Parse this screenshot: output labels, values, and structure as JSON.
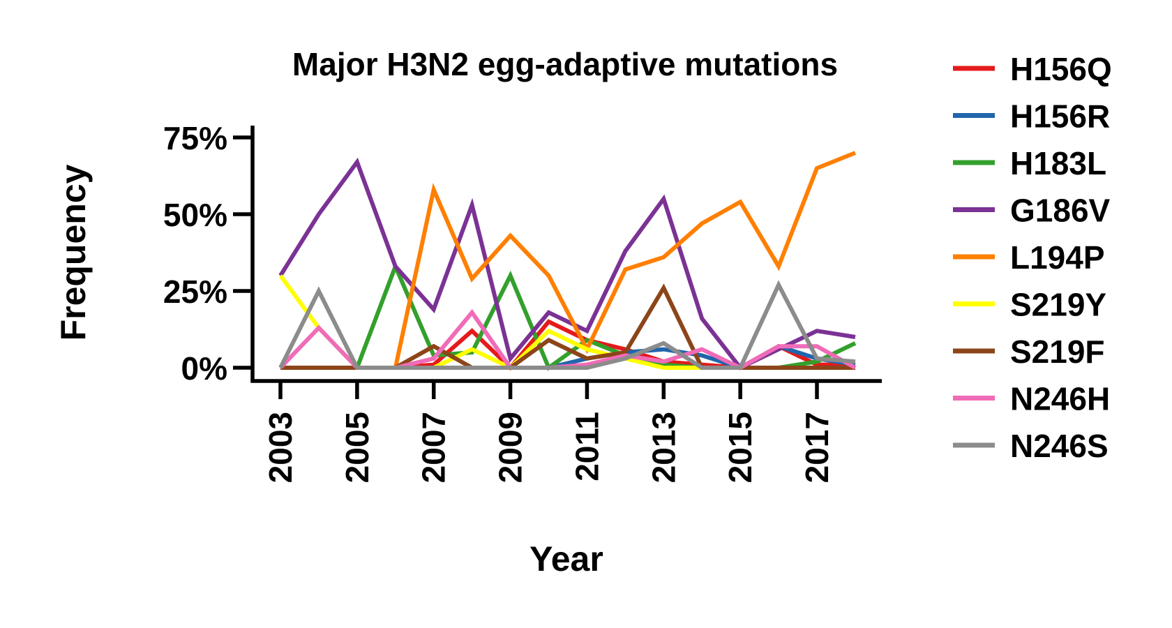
{
  "chart_data": {
    "type": "line",
    "title": "Major H3N2 egg-adaptive mutations",
    "xlabel": "Year",
    "ylabel": "Frequency",
    "ylim": [
      0,
      75
    ],
    "xlim": [
      2003,
      2018
    ],
    "x": [
      2003,
      2004,
      2005,
      2006,
      2007,
      2008,
      2009,
      2010,
      2011,
      2012,
      2013,
      2014,
      2015,
      2016,
      2017,
      2018
    ],
    "x_ticks": [
      2003,
      2005,
      2007,
      2009,
      2011,
      2013,
      2015,
      2017
    ],
    "x_tick_labels": [
      "2003",
      "2005",
      "2007",
      "2009",
      "2011",
      "2013",
      "2015",
      "2017"
    ],
    "y_ticks": [
      0,
      25,
      50,
      75
    ],
    "y_tick_labels": [
      "0%",
      "25%",
      "50%",
      "75%"
    ],
    "grid": false,
    "legend_position": "right",
    "series": [
      {
        "name": "H156Q",
        "color": "#e41a1c",
        "values": [
          0,
          0,
          0,
          0,
          1,
          12,
          0,
          15,
          9,
          6,
          2,
          1,
          0,
          7,
          1,
          1
        ]
      },
      {
        "name": "H156R",
        "color": "#2166ac",
        "values": [
          0,
          0,
          0,
          0,
          0,
          0,
          0,
          0,
          3,
          5,
          6,
          4,
          0,
          7,
          3,
          1
        ]
      },
      {
        "name": "H183L",
        "color": "#33a02c",
        "values": [
          0,
          0,
          0,
          33,
          4,
          5,
          30,
          0,
          9,
          4,
          1,
          0,
          0,
          0,
          2,
          8
        ]
      },
      {
        "name": "G186V",
        "color": "#7b3294",
        "values": [
          30,
          50,
          67,
          33,
          19,
          53,
          3,
          18,
          12,
          38,
          55,
          16,
          0,
          6,
          12,
          10
        ]
      },
      {
        "name": "L194P",
        "color": "#ff7f00",
        "values": [
          0,
          0,
          0,
          0,
          58,
          29,
          43,
          30,
          6,
          32,
          36,
          47,
          54,
          33,
          65,
          70
        ]
      },
      {
        "name": "S219Y",
        "color": "#ffff00",
        "values": [
          30,
          13,
          0,
          0,
          0,
          6,
          0,
          12,
          6,
          3,
          0,
          0,
          0,
          0,
          0,
          0
        ]
      },
      {
        "name": "S219F",
        "color": "#8c4519",
        "values": [
          0,
          0,
          0,
          0,
          7,
          0,
          0,
          9,
          3,
          5,
          26,
          0,
          0,
          0,
          0,
          0
        ]
      },
      {
        "name": "N246H",
        "color": "#f06bb8",
        "values": [
          0,
          13,
          0,
          0,
          3,
          18,
          0,
          0,
          1,
          4,
          2,
          6,
          0,
          7,
          7,
          0
        ]
      },
      {
        "name": "N246S",
        "color": "#8c8c8c",
        "values": [
          0,
          25,
          0,
          0,
          0,
          0,
          0,
          0,
          0,
          3,
          8,
          0,
          0,
          27,
          3,
          2
        ]
      }
    ]
  }
}
